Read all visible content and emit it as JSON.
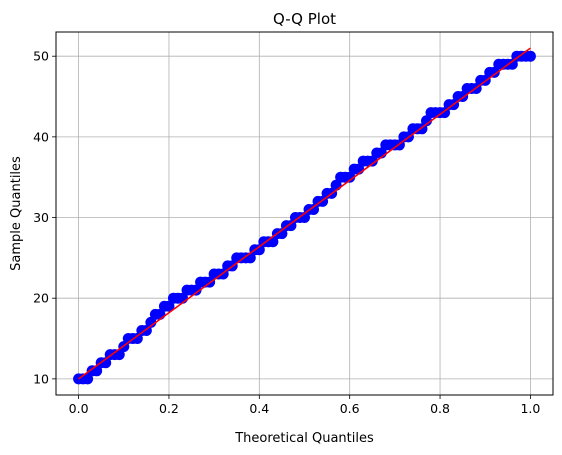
{
  "chart_data": {
    "type": "scatter",
    "title": "Q-Q Plot",
    "xlabel": "Theoretical Quantiles",
    "ylabel": "Sample Quantiles",
    "xlim": [
      -0.05,
      1.05
    ],
    "ylim": [
      8,
      53
    ],
    "xticks": [
      0.0,
      0.2,
      0.4,
      0.6,
      0.8,
      1.0
    ],
    "xtick_labels": [
      "0.0",
      "0.2",
      "0.4",
      "0.6",
      "0.8",
      "1.0"
    ],
    "yticks": [
      10,
      20,
      30,
      40,
      50
    ],
    "ytick_labels": [
      "10",
      "20",
      "30",
      "40",
      "50"
    ],
    "grid": true,
    "legend": "none",
    "series": [
      {
        "kind": "points",
        "color": "#0000ff",
        "x": [
          0.0,
          0.01,
          0.02,
          0.03,
          0.04,
          0.05,
          0.06,
          0.07,
          0.08,
          0.09,
          0.1,
          0.11,
          0.12,
          0.13,
          0.14,
          0.15,
          0.16,
          0.17,
          0.18,
          0.19,
          0.2,
          0.21,
          0.22,
          0.23,
          0.24,
          0.25,
          0.26,
          0.27,
          0.28,
          0.29,
          0.3,
          0.31,
          0.32,
          0.33,
          0.34,
          0.35,
          0.36,
          0.37,
          0.38,
          0.39,
          0.4,
          0.41,
          0.42,
          0.43,
          0.44,
          0.45,
          0.46,
          0.47,
          0.48,
          0.49,
          0.5,
          0.51,
          0.52,
          0.53,
          0.54,
          0.55,
          0.56,
          0.57,
          0.58,
          0.59,
          0.6,
          0.61,
          0.62,
          0.63,
          0.64,
          0.65,
          0.66,
          0.67,
          0.68,
          0.69,
          0.7,
          0.71,
          0.72,
          0.73,
          0.74,
          0.75,
          0.76,
          0.77,
          0.78,
          0.79,
          0.8,
          0.81,
          0.82,
          0.83,
          0.84,
          0.85,
          0.86,
          0.87,
          0.88,
          0.89,
          0.9,
          0.91,
          0.92,
          0.93,
          0.94,
          0.95,
          0.96,
          0.97,
          0.98,
          0.99,
          1.0
        ],
        "y": [
          10,
          10,
          10,
          11,
          11,
          12,
          12,
          13,
          13,
          13,
          14,
          15,
          15,
          15,
          16,
          16,
          17,
          18,
          18,
          19,
          19,
          20,
          20,
          20,
          21,
          21,
          21,
          22,
          22,
          22,
          23,
          23,
          23,
          24,
          24,
          25,
          25,
          25,
          25,
          26,
          26,
          27,
          27,
          27,
          28,
          28,
          29,
          29,
          30,
          30,
          30,
          31,
          31,
          32,
          32,
          33,
          33,
          34,
          35,
          35,
          35,
          36,
          36,
          37,
          37,
          37,
          38,
          38,
          39,
          39,
          39,
          39,
          40,
          40,
          41,
          41,
          41,
          42,
          43,
          43,
          43,
          43,
          44,
          44,
          45,
          45,
          46,
          46,
          46,
          47,
          47,
          48,
          48,
          49,
          49,
          49,
          49,
          50,
          50,
          50,
          50
        ]
      },
      {
        "kind": "line",
        "color": "#ff0000",
        "x": [
          0.0,
          1.0
        ],
        "y": [
          10,
          51
        ]
      }
    ]
  }
}
